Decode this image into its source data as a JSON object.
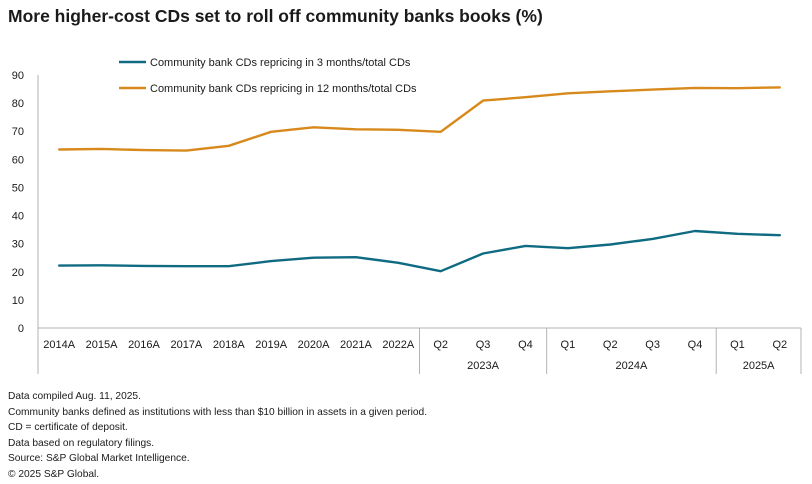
{
  "title": "More higher-cost CDs set to roll off community banks books (%)",
  "chart_data": {
    "type": "line",
    "categories": [
      "2014A",
      "2015A",
      "2016A",
      "2017A",
      "2018A",
      "2019A",
      "2020A",
      "2021A",
      "2022A",
      "Q2",
      "Q3",
      "Q4",
      "Q1",
      "Q2",
      "Q3",
      "Q4",
      "Q1",
      "Q2"
    ],
    "category_groups": [
      {
        "label": "2023A",
        "from": 9,
        "to": 11
      },
      {
        "label": "2024A",
        "from": 12,
        "to": 15
      },
      {
        "label": "2025A",
        "from": 16,
        "to": 17
      }
    ],
    "series": [
      {
        "name": "Community bank CDs repricing in 3 months/total CDs",
        "color": "#0f6b82",
        "values": [
          22.2,
          22.3,
          22.1,
          22.0,
          22.0,
          23.8,
          25.0,
          25.2,
          23.2,
          20.2,
          26.5,
          29.2,
          28.4,
          29.7,
          31.7,
          34.5,
          33.5,
          33.0
        ]
      },
      {
        "name": "Community bank CDs repricing in 12 months/total CDs",
        "color": "#d8891b",
        "values": [
          63.5,
          63.7,
          63.3,
          63.1,
          64.8,
          69.8,
          71.4,
          70.7,
          70.5,
          69.8,
          80.9,
          82.1,
          83.5,
          84.2,
          84.8,
          85.4,
          85.3,
          85.6
        ]
      }
    ],
    "ylim": [
      0,
      90
    ],
    "yticks": [
      0,
      10,
      20,
      30,
      40,
      50,
      60,
      70,
      80,
      90
    ],
    "legend": "top-left",
    "grid": false
  },
  "notes": [
    "Data compiled Aug. 11, 2025.",
    "Community banks defined as institutions with less than $10 billion in assets in a given period.",
    "CD = certificate of deposit.",
    "Data based on regulatory filings.",
    "Source: S&P Global Market Intelligence.",
    "© 2025 S&P Global."
  ]
}
